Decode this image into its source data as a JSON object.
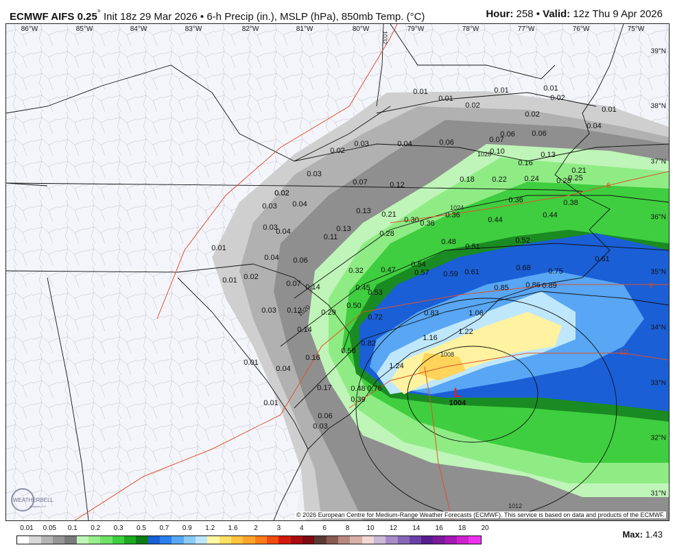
{
  "header": {
    "model": "ECMWF AIFS 0.25",
    "degree": "°",
    "init": "Init 18z 29 Mar 2026",
    "bullet": "•",
    "fields": "6-h Precip (in.), MSLP (hPa), 850mb Temp. (°C)",
    "hour_label": "Hour:",
    "hour": "258",
    "valid_label": "Valid:",
    "valid": "12z Thu 9 Apr 2026"
  },
  "longitude_labels": [
    "86°W",
    "85°W",
    "84°W",
    "83°W",
    "82°W",
    "81°W",
    "80°W",
    "79°W",
    "78°W",
    "77°W",
    "76°W",
    "75°W"
  ],
  "latitude_labels": [
    "39°N",
    "38°N",
    "37°N",
    "36°N",
    "35°N",
    "34°N",
    "33°N",
    "32°N",
    "31°N"
  ],
  "precip_values": [
    "0.01",
    "0.01",
    "0.01",
    "0.02",
    "0.01",
    "0.02",
    "0.02",
    "0.01",
    "0.02",
    "0.03",
    "0.04",
    "0.06",
    "0.07",
    "0.10",
    "0.16",
    "0.13",
    "0.06",
    "0.06",
    "0.04",
    "0.02",
    "0.03",
    "0.07",
    "0.12",
    "0.18",
    "0.22",
    "0.24",
    "0.28",
    "0.25",
    "0.21",
    "0.02",
    "0.03",
    "0.04",
    "0.03",
    "0.04",
    "0.13",
    "0.21",
    "0.30",
    "0.36",
    "0.36",
    "0.44",
    "0.44",
    "0.38",
    "0.36",
    "0.13",
    "0.11",
    "0.28",
    "0.48",
    "0.51",
    "0.52",
    "0.04",
    "0.06",
    "0.01",
    "0.01",
    "0.02",
    "0.07",
    "0.14",
    "0.32",
    "0.47",
    "0.54",
    "0.57",
    "0.59",
    "0.61",
    "0.68",
    "0.61",
    "0.75",
    "0.45",
    "0.53",
    "0.85",
    "0.86",
    "0.89",
    "0.03",
    "0.12",
    "0.29",
    "0.50",
    "0.72",
    "0.83",
    "1.06",
    "0.14",
    "0.82",
    "1.16",
    "1.22",
    "0.16",
    "0.58",
    "1.24",
    "0.01",
    "0.04",
    "0.17",
    "0.48",
    "0.76",
    "0.39",
    "0.01",
    "0.06",
    "0.03"
  ],
  "isobar_labels": [
    "1032",
    "1028",
    "1024",
    "1020",
    "1008",
    "1012"
  ],
  "temp_labels": [
    "6",
    "9",
    "12"
  ],
  "low": {
    "symbol": "L",
    "pressure": "1004"
  },
  "credit": "© 2026 European Centre for Medium-Range Weather Forecasts (ECMWF). This service is based on data and products of the ECMWF.",
  "logo": {
    "name": "WEATHERBELL",
    "sub": "Analytics LLC"
  },
  "legend": {
    "ticks": [
      "0.01",
      "0.05",
      "0.1",
      "0.2",
      "0.3",
      "0.5",
      "0.7",
      "0.9",
      "1.2",
      "1.6",
      "2",
      "3",
      "4",
      "6",
      "8",
      "10",
      "12",
      "14",
      "16",
      "18",
      "20"
    ],
    "colors": [
      "#ffffff",
      "#d8d8d8",
      "#b4b4b4",
      "#969696",
      "#7a7a7a",
      "#bff5b8",
      "#97ee8c",
      "#6fe266",
      "#3fce3f",
      "#1ca81f",
      "#107a18",
      "#1a5fd6",
      "#2b7ff0",
      "#58a6f4",
      "#8ccaf7",
      "#bfe7fb",
      "#fff7a6",
      "#ffe066",
      "#ffc43d",
      "#ffa42a",
      "#ff7a1a",
      "#f04a12",
      "#d21a0e",
      "#a80d10",
      "#7d0b12",
      "#5a3a32",
      "#8a5a52",
      "#b88880",
      "#d7b0aa",
      "#f0d8d4",
      "#cbb9da",
      "#a78cc7",
      "#8666b6",
      "#6a3fa6",
      "#571e8e",
      "#7a1a9a",
      "#a418b4",
      "#cc22cc",
      "#ee33ee"
    ],
    "max_label": "Max:",
    "max_value": "1.43"
  },
  "colors": {
    "temp_isotherm": "#e0502a",
    "low_marker": "#e02020"
  }
}
